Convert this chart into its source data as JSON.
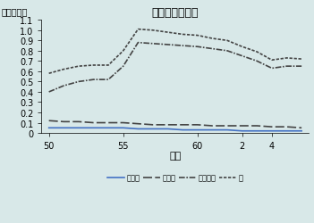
{
  "title": "特殊教育諸学校",
  "ylabel": "単位・千人",
  "xlabel": "年度",
  "ylim": [
    0,
    1.1
  ],
  "ytick_vals": [
    0,
    0.1,
    0.2,
    0.3,
    0.4,
    0.5,
    0.6,
    0.7,
    0.8,
    0.9,
    1.0,
    1.1
  ],
  "ytick_labels": [
    "0",
    "0.1",
    "0.2",
    "0.3",
    "0.4",
    "0.5",
    "0.6",
    "0.7",
    "0.8",
    "0.9",
    "1.0",
    "1.1"
  ],
  "xtick_positions": [
    0,
    5,
    10,
    13,
    15
  ],
  "xtick_labels": [
    "50",
    "55",
    "60",
    "2",
    "4"
  ],
  "background_color": "#d8e8e8",
  "mou": [
    0.05,
    0.05,
    0.05,
    0.05,
    0.05,
    0.05,
    0.04,
    0.04,
    0.04,
    0.03,
    0.03,
    0.03,
    0.03,
    0.02,
    0.02,
    0.02,
    0.02,
    0.02
  ],
  "rou": [
    0.12,
    0.11,
    0.11,
    0.1,
    0.1,
    0.1,
    0.09,
    0.08,
    0.08,
    0.08,
    0.08,
    0.07,
    0.07,
    0.07,
    0.07,
    0.06,
    0.06,
    0.05
  ],
  "you": [
    0.4,
    0.46,
    0.5,
    0.52,
    0.52,
    0.65,
    0.88,
    0.87,
    0.86,
    0.85,
    0.84,
    0.82,
    0.8,
    0.75,
    0.7,
    0.63,
    0.65,
    0.65
  ],
  "kei": [
    0.58,
    0.62,
    0.65,
    0.66,
    0.66,
    0.8,
    1.01,
    1.0,
    0.98,
    0.96,
    0.95,
    0.92,
    0.9,
    0.84,
    0.79,
    0.71,
    0.73,
    0.72
  ],
  "legend": [
    "盲学校",
    "肋学校",
    "養護学校",
    "計"
  ],
  "mou_color": "#4472c4",
  "dark_color": "#444444",
  "title_fontsize": 9,
  "label_fontsize": 7,
  "tick_fontsize": 7
}
